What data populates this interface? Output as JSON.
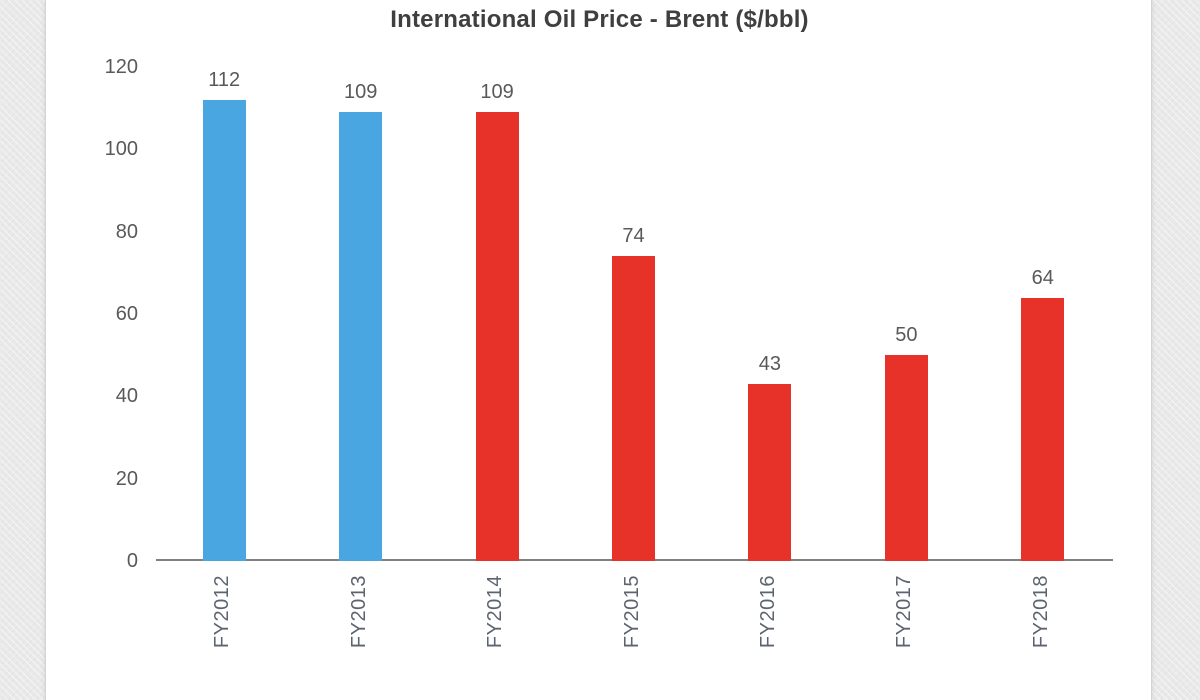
{
  "page": {
    "background_color": "#e9e9e9",
    "card_color": "#ffffff"
  },
  "chart_data": {
    "type": "bar",
    "title": "International Oil Price - Brent ($/bbl)",
    "categories": [
      "FY2012",
      "FY2013",
      "FY2014",
      "FY2015",
      "FY2016",
      "FY2017",
      "FY2018"
    ],
    "values": [
      112,
      109,
      109,
      74,
      43,
      50,
      64
    ],
    "data_labels": [
      "112",
      "109",
      "109",
      "74",
      "43",
      "50",
      "64"
    ],
    "bar_colors": [
      "#4aa6e0",
      "#4aa6e0",
      "#e63229",
      "#e63229",
      "#e63229",
      "#e63229",
      "#e63229"
    ],
    "y_ticks": [
      0,
      20,
      40,
      60,
      80,
      100,
      120
    ],
    "ylim": [
      0,
      120
    ],
    "xlabel": "",
    "ylabel": "",
    "grid": false,
    "legend": "none",
    "colors": {
      "blue_bar": "#4aa6e0",
      "red_bar": "#e63229",
      "axis_line": "#808080",
      "tick_text": "#595959",
      "title_text": "#3f3f3f",
      "x_label_text": "#5d6470"
    }
  }
}
